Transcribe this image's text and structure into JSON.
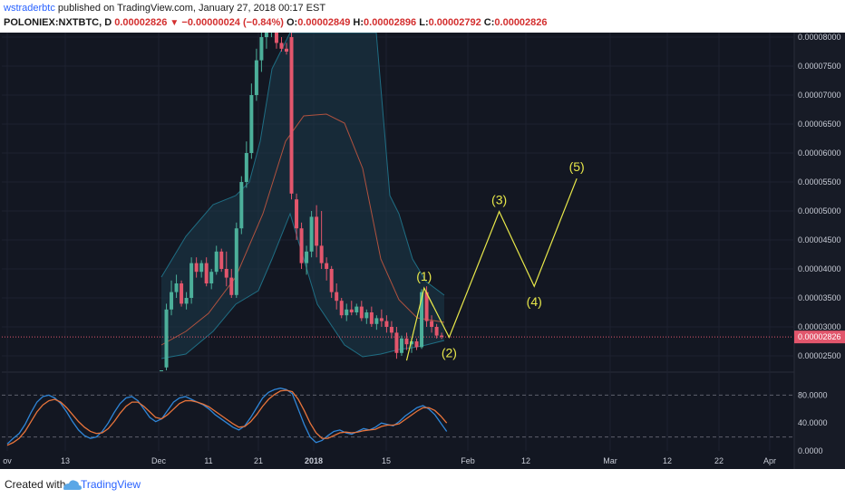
{
  "header": {
    "author": "wstraderbtc",
    "published": " published on TradingView.com, January 27, 2018 00:17 EST",
    "symbol": "POLONIEX:NXTBTC, D",
    "last": "0.00002826",
    "arrow": "▼",
    "change": "−0.00000024 (−0.84%)",
    "o_label": "O:",
    "o_value": "0.00002849",
    "h_label": "H:",
    "h_value": "0.00002896",
    "l_label": "L:",
    "l_value": "0.00002792",
    "c_label": "C:",
    "c_value": "0.00002826"
  },
  "footer": {
    "created_with": "Created with",
    "brand": "TradingView"
  },
  "colors": {
    "background": "#131722",
    "up": "#4caf9a",
    "down": "#e2566c",
    "wave": "#e8e84a",
    "price_line": "#e2566c",
    "bb_band": "#1f6e84",
    "bb_mid": "#b0523f",
    "stoch_k": "#2f86d8",
    "stoch_d": "#e8743b"
  },
  "chart_data": [
    {
      "type": "candlestick",
      "x_axis": {
        "tick_labels": [
          "ov",
          "13",
          "Dec",
          "11",
          "21",
          "2018",
          "15",
          "Feb",
          "12",
          "Mar",
          "12",
          "22",
          "Apr"
        ]
      },
      "y_axis": {
        "range": [
          2.25e-05,
          8.1e-06
        ],
        "ylim": [
          2.25e-05,
          8.1e-05
        ],
        "tick_labels": [
          "0.00002500",
          "0.00003000",
          "0.00003500",
          "0.00004000",
          "0.00004500",
          "0.00005000",
          "0.00005500",
          "0.00006000",
          "0.00006500",
          "0.00007000",
          "0.00007500",
          "0.00008000"
        ],
        "current_price_label": "0.00002826"
      },
      "candles": [
        {
          "o": 2.25e-05,
          "h": 2.25e-05,
          "l": 2.25e-05,
          "c": 2.25e-05
        },
        {
          "o": 2.3e-05,
          "h": 3.4e-05,
          "l": 2.2e-05,
          "c": 3.3e-05
        },
        {
          "o": 3.3e-05,
          "h": 3.8e-05,
          "l": 3.2e-05,
          "c": 3.6e-05
        },
        {
          "o": 3.6e-05,
          "h": 3.9e-05,
          "l": 3.5e-05,
          "c": 3.75e-05
        },
        {
          "o": 3.75e-05,
          "h": 3.8e-05,
          "l": 3.35e-05,
          "c": 3.4e-05
        },
        {
          "o": 3.4e-05,
          "h": 3.6e-05,
          "l": 3.3e-05,
          "c": 3.5e-05
        },
        {
          "o": 3.5e-05,
          "h": 4.2e-05,
          "l": 3.4e-05,
          "c": 4.1e-05
        },
        {
          "o": 4.1e-05,
          "h": 4.2e-05,
          "l": 3.85e-05,
          "c": 3.95e-05
        },
        {
          "o": 3.95e-05,
          "h": 4.15e-05,
          "l": 3.85e-05,
          "c": 4.1e-05
        },
        {
          "o": 4.1e-05,
          "h": 4.2e-05,
          "l": 3.7e-05,
          "c": 3.75e-05
        },
        {
          "o": 3.75e-05,
          "h": 4e-05,
          "l": 3.65e-05,
          "c": 3.95e-05
        },
        {
          "o": 3.95e-05,
          "h": 4.4e-05,
          "l": 3.9e-05,
          "c": 4.3e-05
        },
        {
          "o": 4.3e-05,
          "h": 4.35e-05,
          "l": 3.95e-05,
          "c": 4e-05
        },
        {
          "o": 4e-05,
          "h": 4.3e-05,
          "l": 3.7e-05,
          "c": 3.85e-05
        },
        {
          "o": 3.85e-05,
          "h": 4e-05,
          "l": 3.5e-05,
          "c": 3.55e-05
        },
        {
          "o": 3.55e-05,
          "h": 4.8e-05,
          "l": 3.5e-05,
          "c": 4.7e-05
        },
        {
          "o": 4.7e-05,
          "h": 5.6e-05,
          "l": 4.6e-05,
          "c": 5.5e-05
        },
        {
          "o": 5.5e-05,
          "h": 6.2e-05,
          "l": 5.4e-05,
          "c": 6e-05
        },
        {
          "o": 6e-05,
          "h": 7.2e-05,
          "l": 5.9e-05,
          "c": 7e-05
        },
        {
          "o": 7e-05,
          "h": 7.8e-05,
          "l": 6.9e-05,
          "c": 7.6e-05
        },
        {
          "o": 7.6e-05,
          "h": 8.1e-05,
          "l": 7.4e-05,
          "c": 8e-05
        },
        {
          "o": 8e-05,
          "h": 8.1e-05,
          "l": 7.8e-05,
          "c": 8.1e-05
        },
        {
          "o": 8.1e-05,
          "h": 8.1e-05,
          "l": 8e-05,
          "c": 8.1e-05
        },
        {
          "o": 8.1e-05,
          "h": 8.1e-05,
          "l": 7.8e-05,
          "c": 7.9e-05
        },
        {
          "o": 7.9e-05,
          "h": 8e-05,
          "l": 7.75e-05,
          "c": 7.8e-05
        },
        {
          "o": 7.8e-05,
          "h": 7.9e-05,
          "l": 7.7e-05,
          "c": 7.75e-05
        },
        {
          "o": 8e-05,
          "h": 8.1e-05,
          "l": 5.2e-05,
          "c": 5.3e-05
        },
        {
          "o": 5.2e-05,
          "h": 5.3e-05,
          "l": 4.5e-05,
          "c": 4.7e-05
        },
        {
          "o": 4.7e-05,
          "h": 4.8e-05,
          "l": 4e-05,
          "c": 4.1e-05
        },
        {
          "o": 4.1e-05,
          "h": 4.4e-05,
          "l": 3.9e-05,
          "c": 4.3e-05
        },
        {
          "o": 4.3e-05,
          "h": 5e-05,
          "l": 4.2e-05,
          "c": 4.9e-05
        },
        {
          "o": 4.9e-05,
          "h": 5.1e-05,
          "l": 4.2e-05,
          "c": 4.4e-05
        },
        {
          "o": 4.4e-05,
          "h": 5e-05,
          "l": 4e-05,
          "c": 4.1e-05
        },
        {
          "o": 4.1e-05,
          "h": 4.2e-05,
          "l": 3.8e-05,
          "c": 4e-05
        },
        {
          "o": 4e-05,
          "h": 4.05e-05,
          "l": 3.5e-05,
          "c": 3.6e-05
        },
        {
          "o": 3.6e-05,
          "h": 3.75e-05,
          "l": 3.3e-05,
          "c": 3.45e-05
        },
        {
          "o": 3.45e-05,
          "h": 3.5e-05,
          "l": 3.15e-05,
          "c": 3.2e-05
        },
        {
          "o": 3.2e-05,
          "h": 3.4e-05,
          "l": 3.1e-05,
          "c": 3.3e-05
        },
        {
          "o": 3.3e-05,
          "h": 3.45e-05,
          "l": 3.2e-05,
          "c": 3.25e-05
        },
        {
          "o": 3.25e-05,
          "h": 3.4e-05,
          "l": 3.2e-05,
          "c": 3.35e-05
        },
        {
          "o": 3.35e-05,
          "h": 3.45e-05,
          "l": 3.1e-05,
          "c": 3.15e-05
        },
        {
          "o": 3.15e-05,
          "h": 3.3e-05,
          "l": 3.05e-05,
          "c": 3.25e-05
        },
        {
          "o": 3.25e-05,
          "h": 3.35e-05,
          "l": 3e-05,
          "c": 3.05e-05
        },
        {
          "o": 3.05e-05,
          "h": 3.2e-05,
          "l": 2.95e-05,
          "c": 3.15e-05
        },
        {
          "o": 3.15e-05,
          "h": 3.3e-05,
          "l": 3e-05,
          "c": 3.1e-05
        },
        {
          "o": 3.1e-05,
          "h": 3.2e-05,
          "l": 2.9e-05,
          "c": 3e-05
        },
        {
          "o": 3e-05,
          "h": 3.1e-05,
          "l": 2.8e-05,
          "c": 2.9e-05
        },
        {
          "o": 2.9e-05,
          "h": 3e-05,
          "l": 2.45e-05,
          "c": 2.55e-05
        },
        {
          "o": 2.55e-05,
          "h": 2.85e-05,
          "l": 2.5e-05,
          "c": 2.8e-05
        },
        {
          "o": 2.8e-05,
          "h": 2.9e-05,
          "l": 2.6e-05,
          "c": 2.7e-05
        },
        {
          "o": 2.7e-05,
          "h": 2.8e-05,
          "l": 2.55e-05,
          "c": 2.75e-05
        },
        {
          "o": 2.75e-05,
          "h": 2.8e-05,
          "l": 2.6e-05,
          "c": 2.65e-05
        },
        {
          "o": 2.65e-05,
          "h": 3.65e-05,
          "l": 2.62e-05,
          "c": 3.6e-05
        },
        {
          "o": 3.6e-05,
          "h": 3.7e-05,
          "l": 3e-05,
          "c": 3.1e-05
        },
        {
          "o": 3.1e-05,
          "h": 3.2e-05,
          "l": 2.9e-05,
          "c": 3e-05
        },
        {
          "o": 3e-05,
          "h": 3.05e-05,
          "l": 2.8e-05,
          "c": 2.85e-05
        },
        {
          "o": 2.85e-05,
          "h": 2.9e-05,
          "l": 2.79e-05,
          "c": 2.83e-05
        }
      ],
      "elliott_wave": {
        "points": [
          {
            "candle": 49,
            "price": 2.42e-05,
            "label": ""
          },
          {
            "candle": 52.5,
            "price": 3.67e-05,
            "label": "(1)"
          },
          {
            "candle": 57.5,
            "price": 2.82e-05,
            "label": "(2)"
          },
          {
            "candle": 67.5,
            "price": 4.99e-05,
            "label": "(3)"
          },
          {
            "candle": 74.5,
            "price": 3.7e-05,
            "label": "(4)"
          },
          {
            "candle": 83,
            "price": 5.56e-05,
            "label": "(5)"
          }
        ]
      }
    },
    {
      "type": "line",
      "name_text": "",
      "y_axis": {
        "range": [
          0,
          100
        ],
        "tick_labels": [
          "80.0000",
          "40.0000",
          "0.0000"
        ],
        "dashed_levels": [
          80,
          20
        ]
      },
      "series": [
        {
          "values": [
            10,
            18,
            25,
            38,
            55,
            70,
            78,
            80,
            76,
            68,
            56,
            42,
            30,
            22,
            18,
            20,
            28,
            40,
            55,
            68,
            76,
            78,
            72,
            60,
            48,
            42,
            46,
            58,
            70,
            76,
            78,
            74,
            70,
            66,
            60,
            52,
            46,
            40,
            34,
            30,
            36,
            48,
            62,
            76,
            84,
            88,
            90,
            88,
            82,
            60,
            38,
            20,
            12,
            15,
            22,
            28,
            30,
            26,
            24,
            28,
            32,
            30,
            34,
            40,
            38,
            36,
            42,
            50,
            56,
            62,
            65,
            60,
            52,
            40,
            28
          ]
        },
        {
          "values": [
            8,
            12,
            18,
            28,
            42,
            56,
            66,
            72,
            74,
            70,
            62,
            52,
            42,
            34,
            28,
            25,
            26,
            32,
            42,
            54,
            64,
            70,
            70,
            64,
            56,
            48,
            46,
            52,
            60,
            68,
            72,
            72,
            70,
            67,
            63,
            57,
            51,
            45,
            39,
            34,
            35,
            42,
            52,
            64,
            74,
            81,
            86,
            87,
            85,
            74,
            58,
            40,
            26,
            18,
            18,
            22,
            26,
            27,
            26,
            27,
            29,
            30,
            31,
            35,
            37,
            37,
            39,
            45,
            51,
            57,
            62,
            62,
            58,
            50,
            40
          ]
        }
      ]
    }
  ]
}
